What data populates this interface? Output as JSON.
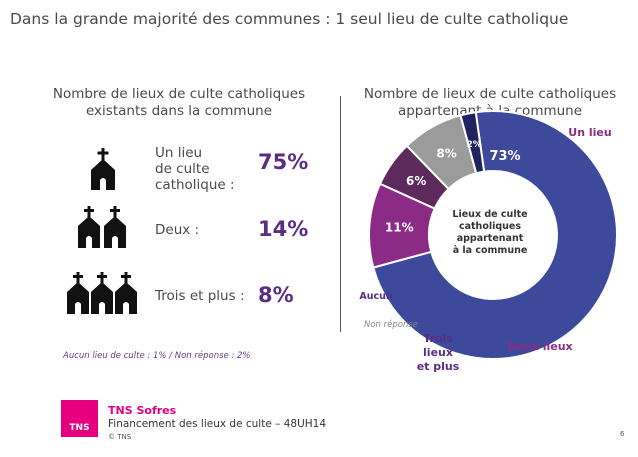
{
  "title": "Dans la grande majorité des communes : 1 seul lieu de culte catholique",
  "left_panel": {
    "title": "Nombre de lieux de culte catholiques existants dans la commune",
    "rows": [
      {
        "label": "Un lieu\nde culte\ncatholique :",
        "value": "75%",
        "icon": "church-1-icon"
      },
      {
        "label": "Deux :",
        "value": "14%",
        "icon": "church-2-icon"
      },
      {
        "label": "Trois et plus :",
        "value": "8%",
        "icon": "church-3-icon"
      }
    ],
    "footnote": "Aucun lieu de culte : 1% / Non réponse : 2%"
  },
  "right_panel": {
    "title": "Nombre de lieux de culte catholiques appartenant à la commune",
    "center_label": "Lieux de culte catholiques appartenant à la commune"
  },
  "chart_data": {
    "type": "pie",
    "variant": "donut",
    "categories": [
      "Un lieu",
      "Deux lieux",
      "Trois lieux et plus",
      "Aucun",
      "Non réponse"
    ],
    "values": [
      73,
      11,
      6,
      8,
      2
    ],
    "value_labels": [
      "73%",
      "11%",
      "6%",
      "8%",
      "2%"
    ],
    "outer_labels": [
      "Un lieu",
      "Deux lieux",
      "Trois lieux et plus",
      "Aucun",
      "Non réponse"
    ],
    "colors": [
      "#3d4a9c",
      "#8b2b85",
      "#5d2a5c",
      "#9b9b9b",
      "#1f2460"
    ],
    "label_colors": [
      "#8b2b85",
      "#8b2b85",
      "#5a2d82",
      "#5a2d82",
      "#888888"
    ]
  },
  "footer": {
    "brand": "TNS Sofres",
    "logo_text": "TNS",
    "subtitle": "Financement des lieux de culte – 48UH14",
    "copyright": "© TNS",
    "page": "6"
  }
}
